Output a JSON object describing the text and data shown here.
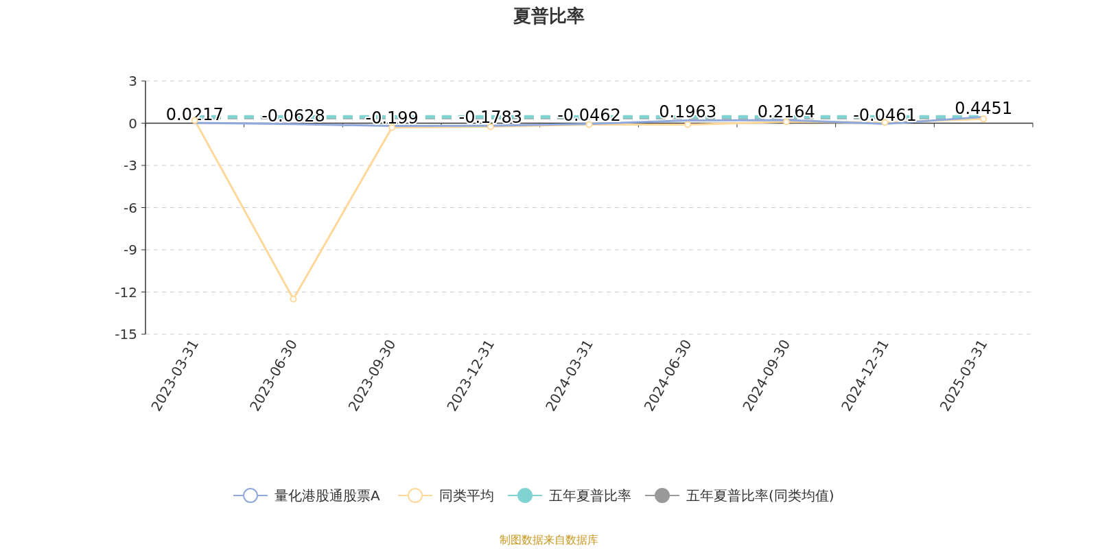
{
  "chart_data": {
    "type": "line",
    "title": "夏普比率",
    "categories": [
      "2023-03-31",
      "2023-06-30",
      "2023-09-30",
      "2023-12-31",
      "2024-03-31",
      "2024-06-30",
      "2024-09-30",
      "2024-12-31",
      "2025-03-31"
    ],
    "series": [
      {
        "name": "量化港股通股票A",
        "color": "#8fa9dc",
        "marker": "none",
        "line_style": "solid",
        "values": [
          0.0217,
          -0.0628,
          -0.199,
          -0.1783,
          -0.0462,
          0.1963,
          0.2164,
          -0.0461,
          0.4451
        ],
        "value_labels": [
          "0.0217",
          "-0.0628",
          "-0.199",
          "-0.1783",
          "-0.0462",
          "0.1963",
          "0.2164",
          "-0.0461",
          "0.4451"
        ]
      },
      {
        "name": "同类平均",
        "color": "#fdd89a",
        "marker": "circle",
        "line_style": "solid",
        "values": [
          0.2,
          -12.5,
          -0.3,
          -0.25,
          -0.1,
          -0.1,
          0.1,
          0.05,
          0.3
        ]
      },
      {
        "name": "五年夏普比率",
        "color": "#7fd3d3",
        "marker": "none",
        "line_style": "dashed",
        "values": [
          0.45,
          0.45,
          0.45,
          0.45,
          0.45,
          0.45,
          0.45,
          0.45,
          0.45
        ]
      },
      {
        "name": "五年夏普比率(同类均值)",
        "color": "#999999",
        "marker": "none",
        "line_style": "dashed",
        "values": [
          0.4,
          0.4,
          0.4,
          0.4,
          0.4,
          0.4,
          0.4,
          0.4,
          0.4
        ]
      }
    ],
    "ylim": [
      -15,
      3
    ],
    "yticks": [
      -15,
      -12,
      -9,
      -6,
      -3,
      0,
      3
    ],
    "grid": "y",
    "legend": "bottom",
    "annotations": [
      "制图数据来自数据库"
    ]
  }
}
